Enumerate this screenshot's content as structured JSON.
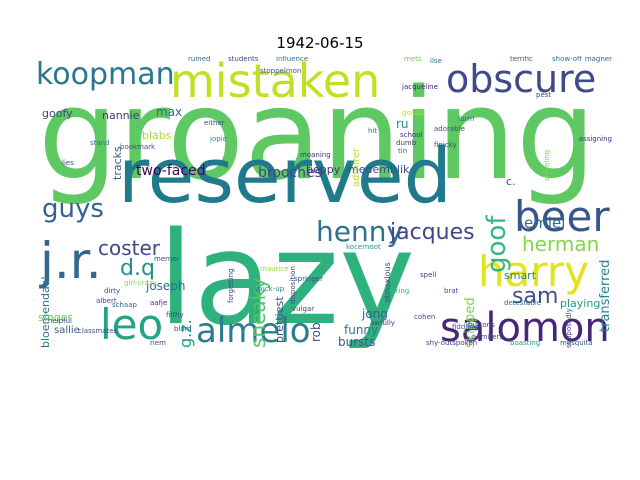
{
  "title": "1942-06-15",
  "words": [
    {
      "text": "groaning",
      "color": "#5ec962"
    },
    {
      "text": "lazy",
      "color": "#2db27d"
    },
    {
      "text": "reserved",
      "color": "#1f7a8c"
    },
    {
      "text": "mistaken",
      "color": "#c2df23"
    },
    {
      "text": "obscure",
      "color": "#3e4a89"
    },
    {
      "text": "salomon",
      "color": "#482677"
    },
    {
      "text": "harry",
      "color": "#e2e418"
    },
    {
      "text": "beer",
      "color": "#39568c"
    },
    {
      "text": "koopman",
      "color": "#2a788e"
    },
    {
      "text": "almelo",
      "color": "#287d8e"
    },
    {
      "text": "leo",
      "color": "#20a386"
    },
    {
      "text": "j.r.",
      "color": "#31688e"
    },
    {
      "text": "henny",
      "color": "#2c728e"
    },
    {
      "text": "jacques",
      "color": "#404688"
    },
    {
      "text": "goof",
      "color": "#35b779"
    },
    {
      "text": "herman",
      "color": "#85d54a"
    },
    {
      "text": "sam",
      "color": "#3b528b"
    },
    {
      "text": "guys",
      "color": "#33638d"
    },
    {
      "text": "coster",
      "color": "#3e4989"
    },
    {
      "text": "sneaky",
      "color": "#52c569"
    },
    {
      "text": "d.q",
      "color": "#21918c"
    },
    {
      "text": "emiel",
      "color": "#2e6e8e"
    },
    {
      "text": "brooches",
      "color": "#414487"
    },
    {
      "text": "two-faced",
      "color": "#440154"
    },
    {
      "text": "transferred",
      "color": "#25848e"
    },
    {
      "text": "skipped",
      "color": "#7ad151"
    },
    {
      "text": "bursts",
      "color": "#3a548c"
    },
    {
      "text": "funny",
      "color": "#2b758e"
    },
    {
      "text": "g.z.",
      "color": "#1fa188"
    },
    {
      "text": "jong",
      "color": "#38598c"
    },
    {
      "text": "joseph",
      "color": "#2d708e"
    },
    {
      "text": "rob",
      "color": "#3f4788"
    },
    {
      "text": "playing",
      "color": "#1e9b8a"
    },
    {
      "text": "smart",
      "color": "#26828e"
    },
    {
      "text": "nannie",
      "color": "#453781"
    },
    {
      "text": "max",
      "color": "#31678e"
    },
    {
      "text": "goofy",
      "color": "#404588"
    },
    {
      "text": "blabs",
      "color": "#a8db34"
    },
    {
      "text": "tracks",
      "color": "#34618d"
    },
    {
      "text": "beppy",
      "color": "#46327e"
    },
    {
      "text": "medemblik",
      "color": "#3d4e8a"
    },
    {
      "text": "bloemendaal",
      "color": "#2c738e"
    },
    {
      "text": "singer",
      "color": "#67cc5c"
    },
    {
      "text": "sallie",
      "color": "#375a8c"
    },
    {
      "text": "prettiest",
      "color": "#3c508b"
    },
    {
      "text": "admirer",
      "color": "#b5de2b"
    },
    {
      "text": "ru",
      "color": "#238a8d"
    },
    {
      "text": "c.",
      "color": "#3b518b"
    },
    {
      "text": "pest",
      "color": "#3f4889"
    },
    {
      "text": "influence",
      "color": "#2a778e"
    },
    {
      "text": "students",
      "color": "#3e4c8a"
    },
    {
      "text": "ruined",
      "color": "#31668e"
    },
    {
      "text": "terrific",
      "color": "#3b528b"
    },
    {
      "text": "show-off",
      "color": "#2c718e"
    },
    {
      "text": "magner",
      "color": "#2e6d8e"
    },
    {
      "text": "jacqueline",
      "color": "#482071"
    },
    {
      "text": "ilse",
      "color": "#2a788e"
    },
    {
      "text": "mets",
      "color": "#6ece58"
    },
    {
      "text": "spell",
      "color": "#3f4788"
    },
    {
      "text": "herring",
      "color": "#35b779"
    },
    {
      "text": "obnoxious",
      "color": "#404387"
    },
    {
      "text": "stuck-up",
      "color": "#25858e"
    },
    {
      "text": "vulgar",
      "color": "#3e4a89"
    },
    {
      "text": "shy-outspoken",
      "color": "#433e85"
    },
    {
      "text": "mesquita",
      "color": "#3a548c"
    },
    {
      "text": "moaning",
      "color": "#46327e"
    },
    {
      "text": "fiddling",
      "color": "#39568c"
    },
    {
      "text": "boasting",
      "color": "#1e9d89"
    },
    {
      "text": "dumb",
      "color": "#443983"
    },
    {
      "text": "school",
      "color": "#472d7b"
    },
    {
      "text": "tin",
      "color": "#31678e"
    },
    {
      "text": "hit",
      "color": "#2d708e"
    },
    {
      "text": "finicky",
      "color": "#414487"
    },
    {
      "text": "adorable",
      "color": "#3e4989"
    },
    {
      "text": "farm",
      "color": "#2c718e"
    },
    {
      "text": "gossip",
      "color": "#b5de2b"
    },
    {
      "text": "either",
      "color": "#3d4d8a"
    },
    {
      "text": "jopie",
      "color": "#228c8d"
    },
    {
      "text": "bookmark",
      "color": "#3b528b"
    },
    {
      "text": "stoppelmon",
      "color": "#365d8d"
    },
    {
      "text": "stand",
      "color": "#2a788e"
    },
    {
      "text": "lies",
      "color": "#3e4c8a"
    },
    {
      "text": "albert",
      "color": "#3e4989"
    },
    {
      "text": "schaap",
      "color": "#2f6b8e"
    },
    {
      "text": "aafje",
      "color": "#472c7a"
    },
    {
      "text": "dirty",
      "color": "#3d4d8a"
    },
    {
      "text": "girl-crazy",
      "color": "#8bd646"
    },
    {
      "text": "filthy",
      "color": "#3e4989"
    },
    {
      "text": "blom",
      "color": "#3b518b"
    },
    {
      "text": "classmates",
      "color": "#3e4a89"
    },
    {
      "text": "helpful",
      "color": "#3e4c8a"
    },
    {
      "text": "riem",
      "color": "#404688"
    },
    {
      "text": "springer",
      "color": "#3b528b"
    },
    {
      "text": "maurice",
      "color": "#95d840"
    },
    {
      "text": "awfully",
      "color": "#433e85"
    },
    {
      "text": "cohen",
      "color": "#3b528b"
    },
    {
      "text": "brat",
      "color": "#3e4a89"
    },
    {
      "text": "detestable",
      "color": "#2f6c8e"
    },
    {
      "text": "kocernoot",
      "color": "#1fa187"
    },
    {
      "text": "forgetting",
      "color": "#404387"
    },
    {
      "text": "disposition",
      "color": "#3f4788"
    },
    {
      "text": "merner",
      "color": "#3e4a89"
    },
    {
      "text": "sniveling",
      "color": "#85d54a"
    },
    {
      "text": "assigning",
      "color": "#472f7d"
    },
    {
      "text": "supposedly",
      "color": "#3e4a89"
    },
    {
      "text": "admirers",
      "color": "#404688"
    },
    {
      "text": "buttons",
      "color": "#3e4989"
    }
  ]
}
